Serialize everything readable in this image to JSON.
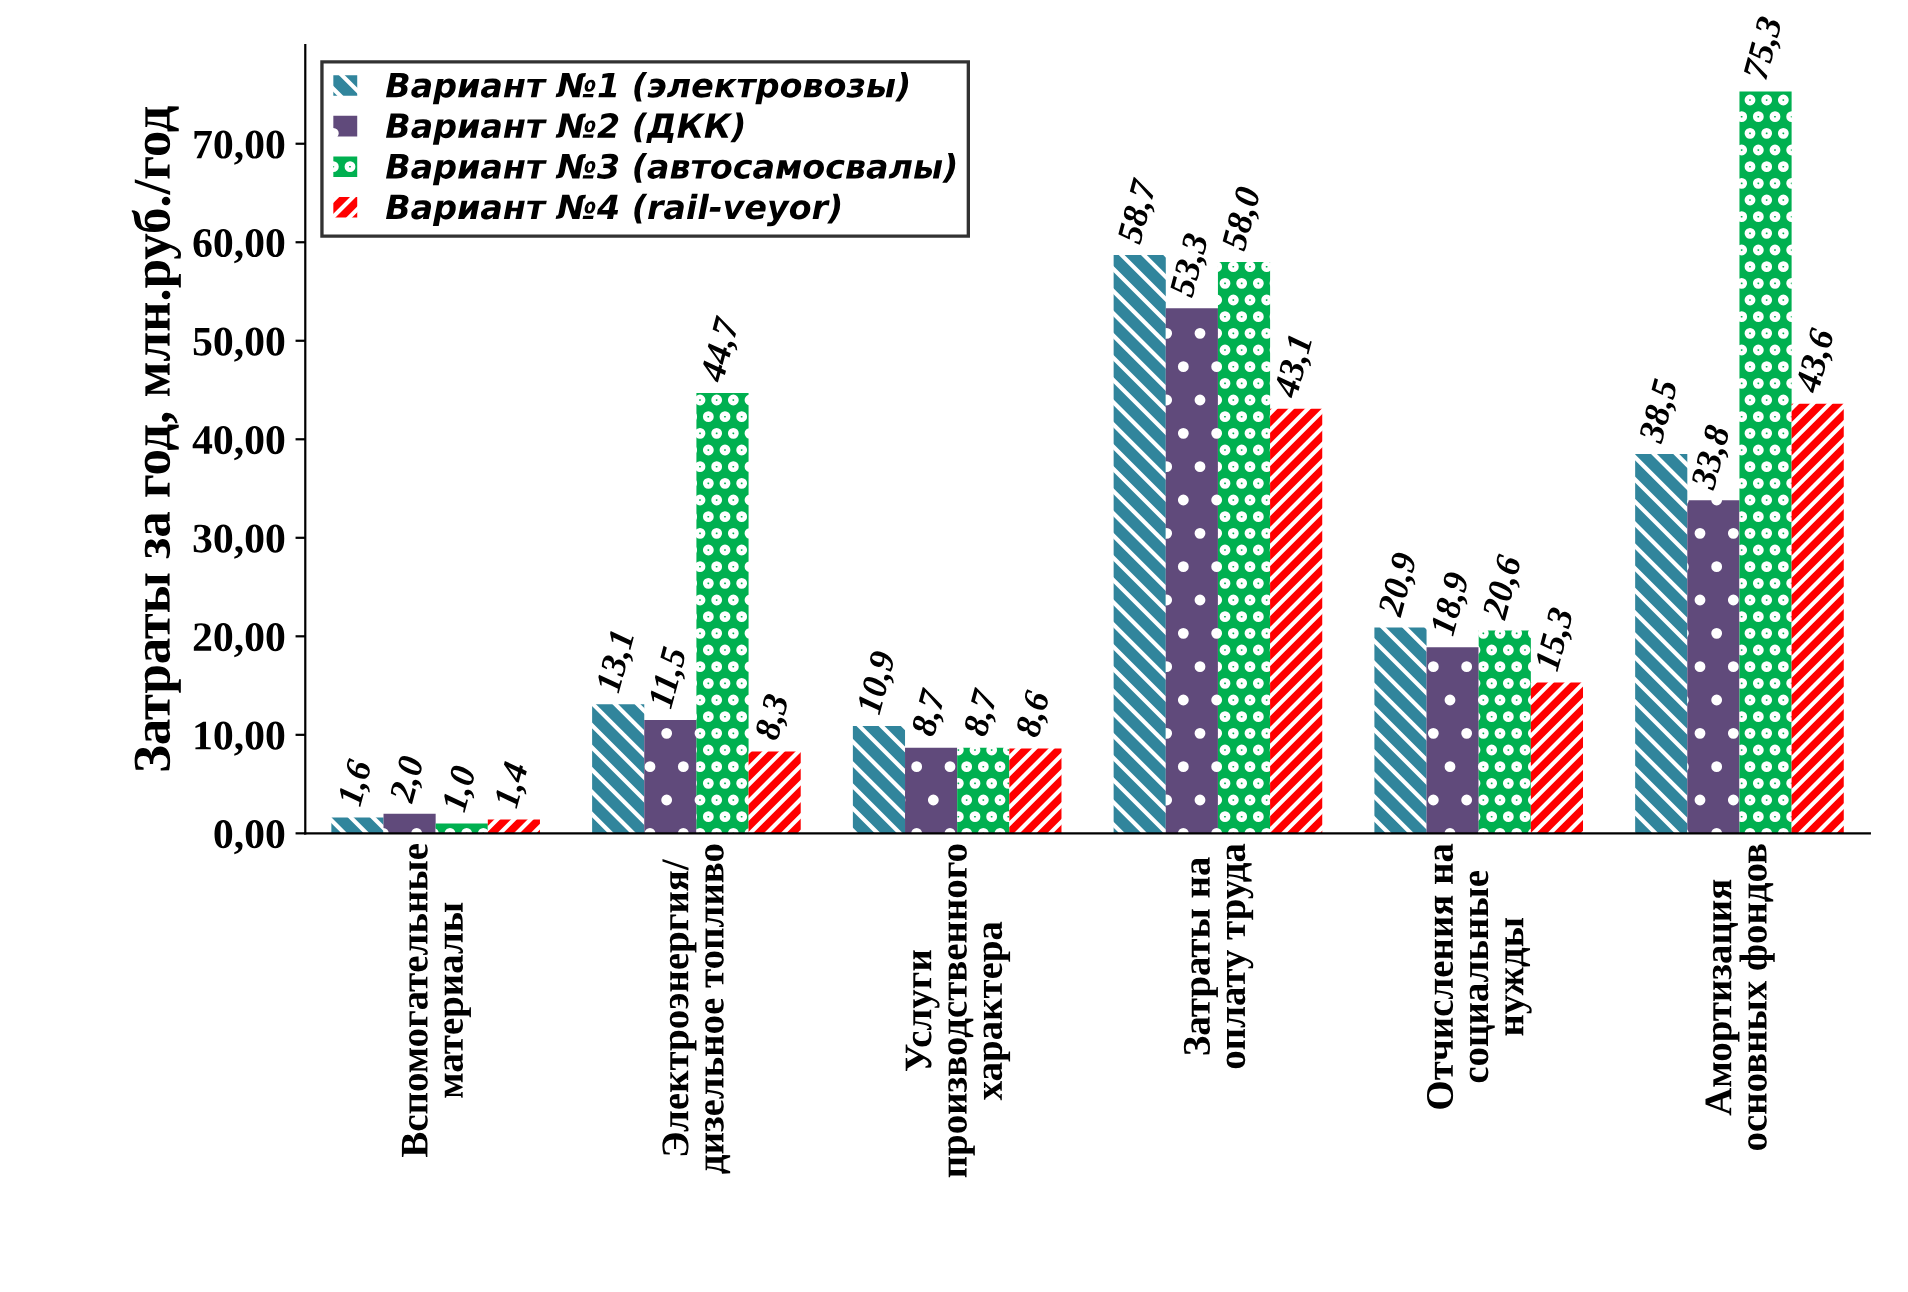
{
  "chart_data": {
    "type": "bar",
    "ylabel": "Затраты за год, млн.руб./год",
    "categories": [
      "Вспомогательные\nматериалы",
      "Электроэнергия/\nдизельное топливо",
      "Услуги\nпроизводственного\nхарактера",
      "Затраты на\nоплату труда",
      "Отчисления на\nсоциальные\nнужды",
      "Амортизация\nосновных фондов"
    ],
    "series": [
      {
        "name": "Вариант №1 (электровозы)",
        "color": "#31859c",
        "values": [
          1.6,
          13.1,
          10.9,
          58.7,
          20.9,
          38.5
        ],
        "value_labels": [
          "1,6",
          "13,1",
          "10,9",
          "58,7",
          "20,9",
          "38,5"
        ]
      },
      {
        "name": "Вариант №2 (ДКК)",
        "color": "#604a7b",
        "values": [
          2.0,
          11.5,
          8.7,
          53.3,
          18.9,
          33.8
        ],
        "value_labels": [
          "2,0",
          "11,5",
          "8,7",
          "53,3",
          "18,9",
          "33,8"
        ]
      },
      {
        "name": "Вариант №3 (автосамосвалы)",
        "color": "#00b050",
        "values": [
          1.0,
          44.7,
          8.7,
          58.0,
          20.6,
          75.3
        ],
        "value_labels": [
          "1,0",
          "44,7",
          "8,7",
          "58,0",
          "20,6",
          "75,3"
        ]
      },
      {
        "name": "Вариант №4 (rail-veyor)",
        "color": "#ff0000",
        "values": [
          1.4,
          8.3,
          8.6,
          43.1,
          15.3,
          43.6
        ],
        "value_labels": [
          "1,4",
          "8,3",
          "8,6",
          "43,1",
          "15,3",
          "43,6"
        ]
      }
    ],
    "ylim": [
      0,
      80
    ],
    "yticks": [
      {
        "value": 0,
        "label": "0,00"
      },
      {
        "value": 10,
        "label": "10,00"
      },
      {
        "value": 20,
        "label": "20,00"
      },
      {
        "value": 30,
        "label": "30,00"
      },
      {
        "value": 40,
        "label": "40,00"
      },
      {
        "value": 50,
        "label": "50,00"
      },
      {
        "value": 60,
        "label": "60,00"
      },
      {
        "value": 70,
        "label": "70,00"
      }
    ],
    "grid": false,
    "legend": "top left"
  }
}
